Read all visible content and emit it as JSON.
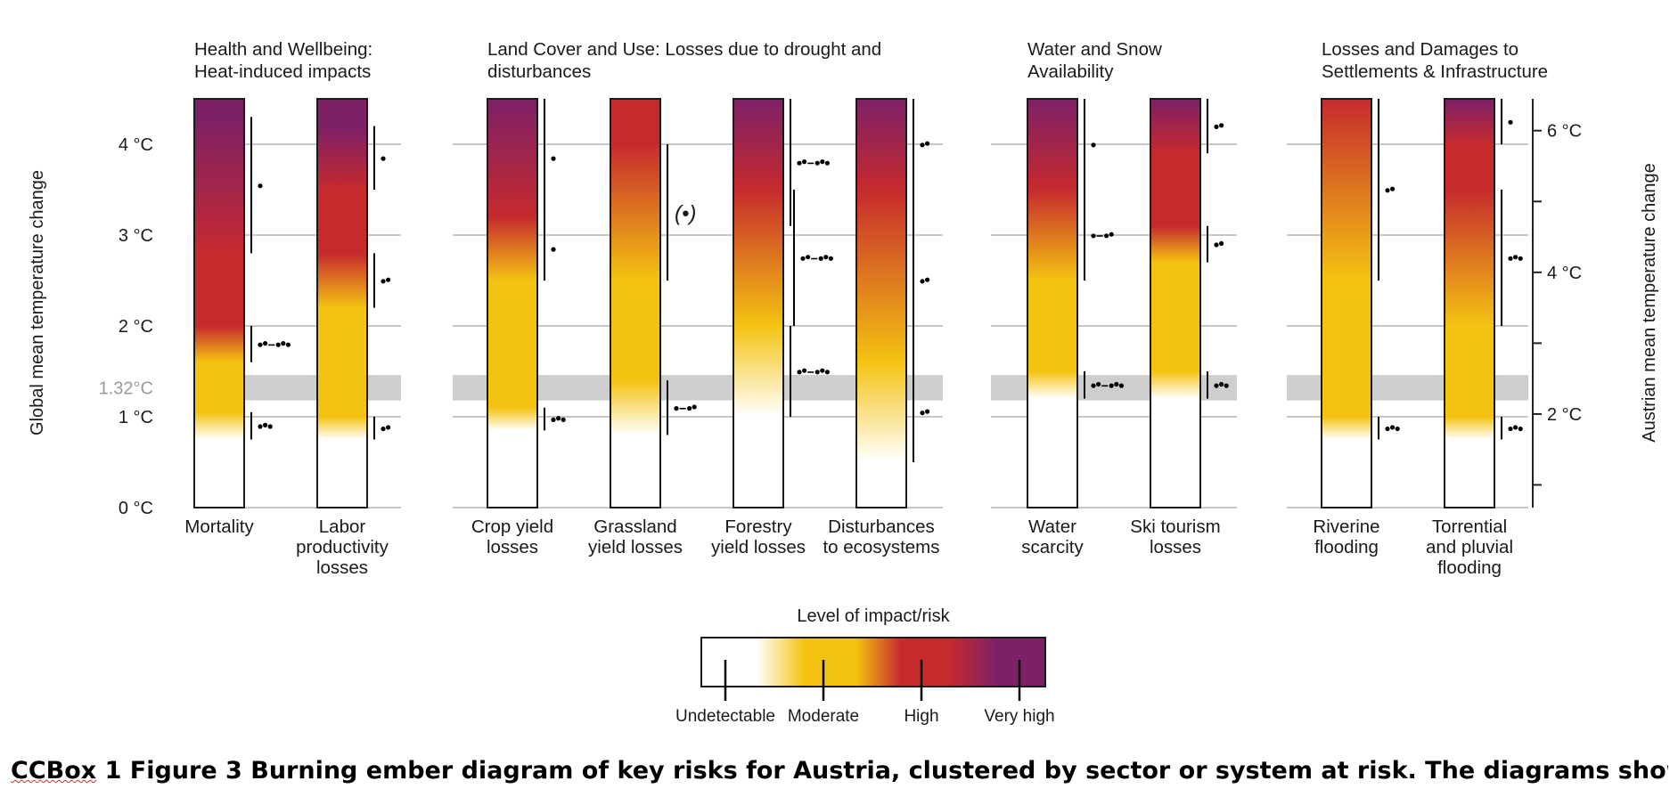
{
  "chart_data": {
    "type": "burning_ember",
    "left_axis": {
      "label": "Global mean temperature change",
      "ticks": [
        {
          "value": 0,
          "label": "0 °C"
        },
        {
          "value": 1,
          "label": "1 °C"
        },
        {
          "value": 2,
          "label": "2 °C"
        },
        {
          "value": 3,
          "label": "3 °C"
        },
        {
          "value": 4,
          "label": "4 °C"
        }
      ],
      "range": [
        0,
        4.5
      ],
      "observed_band": {
        "value": 1.32,
        "low": 1.18,
        "high": 1.46,
        "label": "1.32°C"
      }
    },
    "right_axis": {
      "label": "Austrian mean temperature change",
      "ticks": [
        {
          "global": 0.25,
          "label": ""
        },
        {
          "global": 1.03,
          "label": "2 °C"
        },
        {
          "global": 1.81,
          "label": ""
        },
        {
          "global": 2.59,
          "label": "4 °C"
        },
        {
          "global": 3.37,
          "label": ""
        },
        {
          "global": 4.15,
          "label": "6 °C"
        }
      ]
    },
    "color_levels": {
      "undetectable": "#ffffff",
      "moderate": "#f4c312",
      "high": "#c62a2d",
      "very_high": "#7d2068"
    },
    "clusters": [
      {
        "title": [
          "Health and Wellbeing:",
          "Heat-induced impacts"
        ],
        "embers": [
          {
            "label": [
              "Mortality"
            ],
            "transitions": [
              {
                "from": "undetectable",
                "to": "moderate",
                "start": 0.75,
                "end": 1.05,
                "confidence": "•••"
              },
              {
                "from": "moderate",
                "to": "high",
                "start": 1.6,
                "end": 2.0,
                "confidence": "••–•••"
              },
              {
                "from": "high",
                "to": "very_high",
                "start": 2.8,
                "end": 4.3,
                "confidence": "•"
              }
            ]
          },
          {
            "label": [
              "Labor",
              "productivity",
              "losses"
            ],
            "transitions": [
              {
                "from": "undetectable",
                "to": "moderate",
                "start": 0.75,
                "end": 1.0,
                "confidence": "••"
              },
              {
                "from": "moderate",
                "to": "high",
                "start": 2.2,
                "end": 2.8,
                "confidence": "••"
              },
              {
                "from": "high",
                "to": "very_high",
                "start": 3.5,
                "end": 4.2,
                "confidence": "•"
              }
            ]
          }
        ]
      },
      {
        "title": [
          "Land Cover and Use: Losses due to drought and",
          "disturbances"
        ],
        "embers": [
          {
            "label": [
              "Crop yield",
              "losses"
            ],
            "transitions": [
              {
                "from": "undetectable",
                "to": "moderate",
                "start": 0.85,
                "end": 1.1,
                "confidence": "•••"
              },
              {
                "from": "moderate",
                "to": "high",
                "start": 2.5,
                "end": 3.2,
                "confidence": "•"
              },
              {
                "from": "high",
                "to": "very_high",
                "start": 3.2,
                "end": 4.5,
                "confidence": "•"
              }
            ]
          },
          {
            "label": [
              "Grassland",
              "yield losses"
            ],
            "transitions": [
              {
                "from": "undetectable",
                "to": "moderate",
                "start": 0.8,
                "end": 1.4,
                "confidence": "•–••"
              },
              {
                "from": "moderate",
                "to": "high",
                "start": 2.5,
                "end": 4.0,
                "confidence": "(•)"
              }
            ]
          },
          {
            "label": [
              "Forestry",
              "yield losses"
            ],
            "transitions": [
              {
                "from": "undetectable",
                "to": "moderate",
                "start": 1.0,
                "end": 2.0,
                "confidence": "••–•••"
              },
              {
                "from": "moderate",
                "to": "high",
                "start": 2.0,
                "end": 3.5,
                "confidence": "••–•••"
              },
              {
                "from": "high",
                "to": "very_high",
                "start": 3.1,
                "end": 4.5,
                "confidence": "••–•••"
              }
            ]
          },
          {
            "label": [
              "Disturbances",
              "to ecosystems"
            ],
            "transitions": [
              {
                "from": "undetectable",
                "to": "moderate",
                "start": 0.5,
                "end": 1.6,
                "confidence": "••"
              },
              {
                "from": "moderate",
                "to": "high",
                "start": 1.5,
                "end": 3.5,
                "confidence": "••"
              },
              {
                "from": "high",
                "to": "very_high",
                "start": 3.5,
                "end": 4.5,
                "confidence": "••"
              }
            ]
          }
        ]
      },
      {
        "title": [
          "Water and Snow",
          "Availability"
        ],
        "embers": [
          {
            "label": [
              "Water",
              "scarcity"
            ],
            "transitions": [
              {
                "from": "undetectable",
                "to": "moderate",
                "start": 1.2,
                "end": 1.5,
                "confidence": "••–•••"
              },
              {
                "from": "moderate",
                "to": "high",
                "start": 2.5,
                "end": 3.5,
                "confidence": "•–••"
              },
              {
                "from": "high",
                "to": "very_high",
                "start": 3.5,
                "end": 4.5,
                "confidence": "•"
              }
            ]
          },
          {
            "label": [
              "Ski tourism",
              "losses"
            ],
            "transitions": [
              {
                "from": "undetectable",
                "to": "moderate",
                "start": 1.2,
                "end": 1.5,
                "confidence": "•••"
              },
              {
                "from": "moderate",
                "to": "high",
                "start": 2.7,
                "end": 3.1,
                "confidence": "••"
              },
              {
                "from": "high",
                "to": "very_high",
                "start": 3.9,
                "end": 4.5,
                "confidence": "••"
              }
            ]
          }
        ]
      },
      {
        "title": [
          "Losses and Damages to",
          "Settlements & Infrastructure"
        ],
        "embers": [
          {
            "label": [
              "Riverine",
              "flooding"
            ],
            "transitions": [
              {
                "from": "undetectable",
                "to": "moderate",
                "start": 0.75,
                "end": 1.0,
                "confidence": "•••"
              },
              {
                "from": "moderate",
                "to": "high",
                "start": 2.5,
                "end": 4.5,
                "confidence": "••"
              }
            ]
          },
          {
            "label": [
              "Torrential",
              "and pluvial",
              "flooding"
            ],
            "transitions": [
              {
                "from": "undetectable",
                "to": "moderate",
                "start": 0.75,
                "end": 1.0,
                "confidence": "•••"
              },
              {
                "from": "moderate",
                "to": "high",
                "start": 2.0,
                "end": 3.5,
                "confidence": "•••"
              },
              {
                "from": "high",
                "to": "very_high",
                "start": 4.0,
                "end": 4.5,
                "confidence": "•"
              }
            ]
          }
        ]
      }
    ],
    "legend": {
      "title": "Level of impact/risk",
      "levels": [
        "Undetectable",
        "Moderate",
        "High",
        "Very high"
      ]
    }
  },
  "caption": {
    "squiggled_word": "CCBox",
    "rest": " 1 Figure 3 Burning ember diagram of key risks for Austria, clustered by sector or system at risk. The diagrams show"
  }
}
